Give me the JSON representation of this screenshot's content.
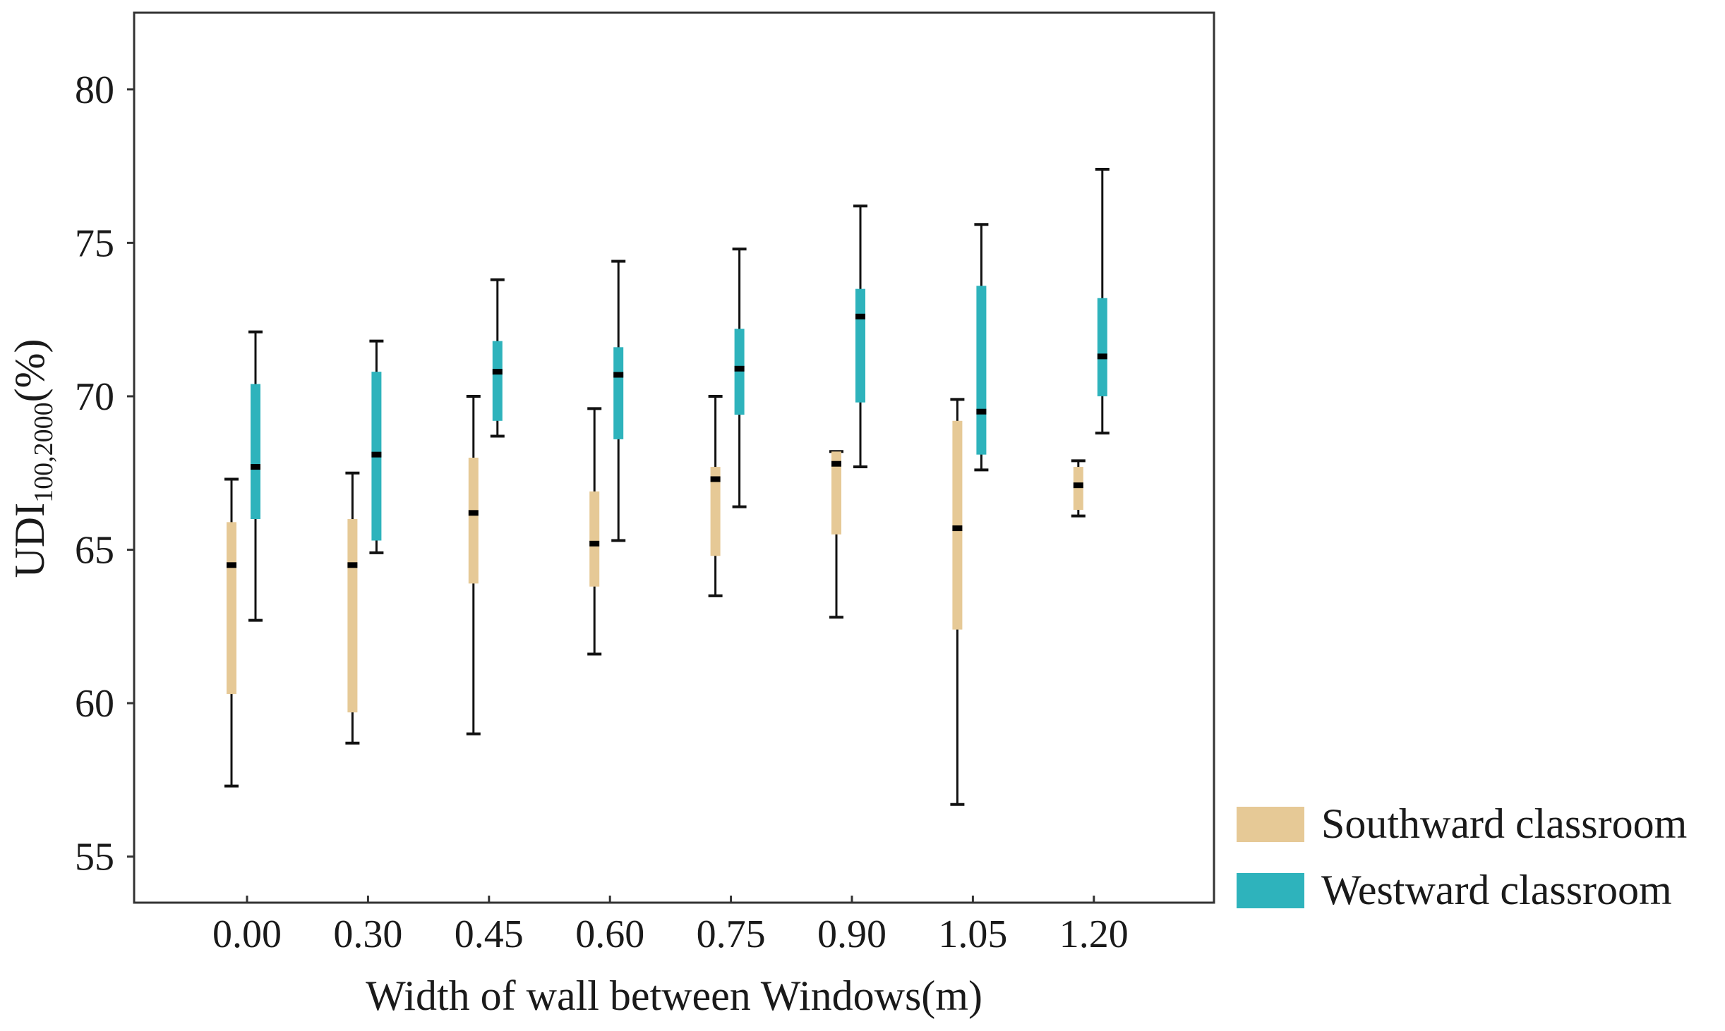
{
  "chart_data": {
    "type": "boxplot",
    "xlabel": "Width of wall between Windows(m)",
    "ylabel": {
      "main": "UDI",
      "subscript": "100,2000",
      "suffix": "(%)"
    },
    "ylim": [
      53.5,
      82.5
    ],
    "yticks": [
      55,
      60,
      65,
      70,
      75,
      80
    ],
    "ytick_labels": [
      "55",
      "60",
      "65",
      "70",
      "75",
      "80"
    ],
    "categories": [
      "0.00",
      "0.30",
      "0.45",
      "0.60",
      "0.75",
      "0.90",
      "1.05",
      "1.20"
    ],
    "grid": false,
    "legend_position": "outside-bottom-right",
    "series": [
      {
        "name": "Southward classroom",
        "color": "#e6c996",
        "boxes": [
          {
            "min": 57.3,
            "q1": 60.3,
            "median": 64.5,
            "q3": 65.9,
            "max": 67.3
          },
          {
            "min": 58.7,
            "q1": 59.7,
            "median": 64.5,
            "q3": 66.0,
            "max": 67.5
          },
          {
            "min": 59.0,
            "q1": 63.9,
            "median": 66.2,
            "q3": 68.0,
            "max": 70.0
          },
          {
            "min": 61.6,
            "q1": 63.8,
            "median": 65.2,
            "q3": 66.9,
            "max": 69.6
          },
          {
            "min": 63.5,
            "q1": 64.8,
            "median": 67.3,
            "q3": 67.7,
            "max": 70.0
          },
          {
            "min": 62.8,
            "q1": 65.5,
            "median": 67.8,
            "q3": 68.2,
            "max": 68.2
          },
          {
            "min": 56.7,
            "q1": 62.4,
            "median": 65.7,
            "q3": 69.2,
            "max": 69.9
          },
          {
            "min": 66.1,
            "q1": 66.3,
            "median": 67.1,
            "q3": 67.7,
            "max": 67.9
          }
        ]
      },
      {
        "name": "Westward classroom",
        "color": "#2eb3bc",
        "boxes": [
          {
            "min": 62.7,
            "q1": 66.0,
            "median": 67.7,
            "q3": 70.4,
            "max": 72.1
          },
          {
            "min": 64.9,
            "q1": 65.3,
            "median": 68.1,
            "q3": 70.8,
            "max": 71.8
          },
          {
            "min": 68.7,
            "q1": 69.2,
            "median": 70.8,
            "q3": 71.8,
            "max": 73.8
          },
          {
            "min": 65.3,
            "q1": 68.6,
            "median": 70.7,
            "q3": 71.6,
            "max": 74.4
          },
          {
            "min": 66.4,
            "q1": 69.4,
            "median": 70.9,
            "q3": 72.2,
            "max": 74.8
          },
          {
            "min": 67.7,
            "q1": 69.8,
            "median": 72.6,
            "q3": 73.5,
            "max": 76.2
          },
          {
            "min": 67.6,
            "q1": 68.1,
            "median": 69.5,
            "q3": 73.6,
            "max": 75.6
          },
          {
            "min": 68.8,
            "q1": 70.0,
            "median": 71.3,
            "q3": 73.2,
            "max": 77.4
          }
        ]
      }
    ]
  }
}
